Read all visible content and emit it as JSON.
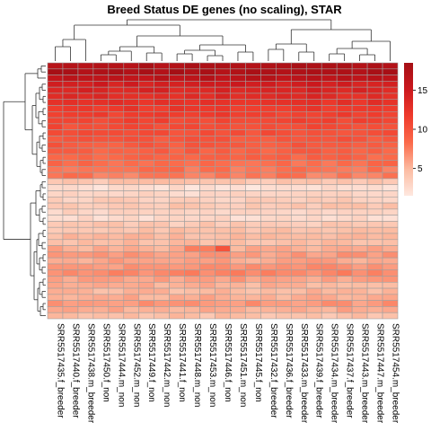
{
  "chart_data": {
    "type": "heatmap",
    "title": "Breed Status DE genes (no scaling), STAR",
    "columns": [
      "SRR5517435.f_breeder",
      "SRR5517440.f_breeder",
      "SRR5517438.m_breeder",
      "SRR5517450.f_non",
      "SRR5517444.m_non",
      "SRR5517452.m_non",
      "SRR5517449.f_non",
      "SRR5517442.m_non",
      "SRR5517441.f_non",
      "SRR5517448.m_non",
      "SRR5517453.m_non",
      "SRR5517446.f_non",
      "SRR5517451.m_non",
      "SRR5517445.f_non",
      "SRR5517432.f_breeder",
      "SRR5517436.f_breeder",
      "SRR5517433.m_breeder",
      "SRR5517439.f_breeder",
      "SRR5517434.m_breeder",
      "SRR5517437.f_breeder",
      "SRR5517443.m_breeder",
      "SRR5517447.m_breeder",
      "SRR5517454.m_breeder"
    ],
    "row_base_values": [
      17.5,
      17.8,
      16.5,
      14.5,
      13.8,
      13.2,
      12.5,
      12.0,
      11.5,
      11.0,
      10.5,
      10.2,
      9.8,
      9.5,
      9.0,
      8.6,
      8.2,
      7.9,
      7.6,
      4.2,
      2.2,
      2.8,
      3.5,
      4.0,
      3.0,
      2.6,
      3.8,
      4.4,
      4.8,
      4.6,
      5.5,
      6.2,
      5.8,
      6.6,
      7.0,
      6.0,
      5.2,
      4.9,
      5.4,
      6.4,
      5.6,
      4.5
    ],
    "legend": {
      "ticks": [
        5,
        10,
        15
      ],
      "min": 1.5,
      "max": 18.5,
      "colors": [
        "#fee8e0",
        "#fcbba1",
        "#fb6a4a",
        "#ef3b2c",
        "#cb181d",
        "#a50f15"
      ]
    },
    "grid": true
  }
}
